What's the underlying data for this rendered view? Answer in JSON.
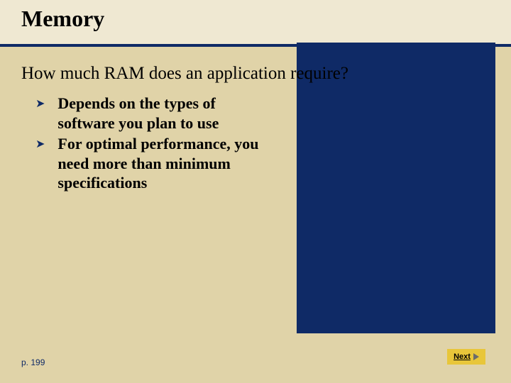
{
  "colors": {
    "header_bg": "#efe8d2",
    "body_bg": "#e0d3a8",
    "underline": "#0f2a66",
    "dark_panel": "#0f2a66",
    "text": "#000000",
    "pageref": "#0f2a66",
    "next_bg": "#e8c63a",
    "arrow": "#6b6b6b"
  },
  "title": {
    "text": "Memory",
    "fontsize": 32
  },
  "question": {
    "text": "How much RAM does an application require?",
    "fontsize": 25
  },
  "bullets": {
    "marker": "➤",
    "marker_color": "#0f2a66",
    "fontsize": 22,
    "items": [
      "Depends on the types of software you plan to use",
      "For optimal performance, you need more than minimum specifications"
    ]
  },
  "pageref": {
    "text": "p. 199",
    "fontsize": 12
  },
  "next": {
    "label": "Next",
    "fontsize": 11
  }
}
